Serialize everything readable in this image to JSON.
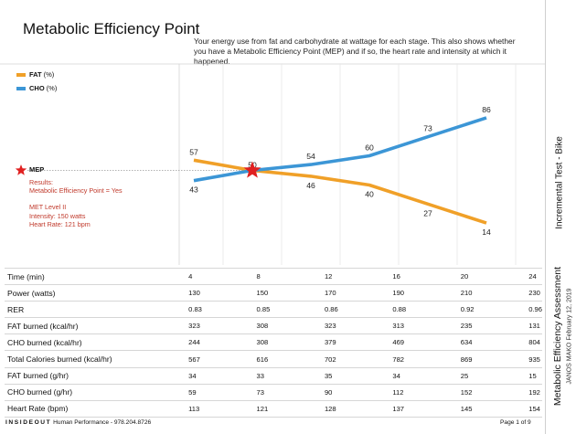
{
  "header": {
    "title": "Metabolic Efficiency Point",
    "description": "Your energy use from fat and carbohydrate at wattage for each stage. This also shows whether you have a Metabolic Efficiency Point (MEP) and if so, the heart rate and intensity at which it happened."
  },
  "legend": [
    {
      "name": "FAT",
      "unit": "(%)",
      "color": "#f0a028"
    },
    {
      "name": "CHO",
      "unit": "(%)",
      "color": "#3c96d6"
    }
  ],
  "mep": {
    "label": "MEP",
    "results_label": "Results:",
    "results_value": "Metabolic Efficiency Point = Yes",
    "met_level": "MET Level II",
    "intensity": "Intensity: 150 watts",
    "heart_rate": "Heart Rate: 121 bpm",
    "marker_color": "#e02020",
    "text_color": "#c0392b"
  },
  "side": {
    "test_type": "Incremental Test - Bike",
    "report_title": "Metabolic Efficiency Assessment",
    "subject": "JANOS MAKO",
    "date": "February 12, 2019"
  },
  "chart_data": {
    "type": "line",
    "x": [
      4,
      8,
      12,
      16,
      20,
      24
    ],
    "series": [
      {
        "name": "FAT (%)",
        "color": "#f0a028",
        "values": [
          57,
          50,
          46,
          40,
          27,
          14
        ]
      },
      {
        "name": "CHO (%)",
        "color": "#3c96d6",
        "values": [
          43,
          50,
          54,
          60,
          73,
          86
        ]
      }
    ],
    "mep_x": 8,
    "mep_y": 50,
    "xlabel": "",
    "ylabel": "",
    "grid": "vertical"
  },
  "table": {
    "rows": [
      {
        "label": "Time (min)",
        "values": [
          "4",
          "8",
          "12",
          "16",
          "20",
          "24"
        ]
      },
      {
        "label": "Power (watts)",
        "values": [
          "130",
          "150",
          "170",
          "190",
          "210",
          "230"
        ]
      },
      {
        "label": "RER",
        "values": [
          "0.83",
          "0.85",
          "0.86",
          "0.88",
          "0.92",
          "0.96"
        ]
      },
      {
        "label": "FAT burned (kcal/hr)",
        "values": [
          "323",
          "308",
          "323",
          "313",
          "235",
          "131"
        ]
      },
      {
        "label": "CHO burned (kcal/hr)",
        "values": [
          "244",
          "308",
          "379",
          "469",
          "634",
          "804"
        ]
      },
      {
        "label": "Total Calories burned (kcal/hr)",
        "values": [
          "567",
          "616",
          "702",
          "782",
          "869",
          "935"
        ]
      },
      {
        "label": "FAT burned (g/hr)",
        "values": [
          "34",
          "33",
          "35",
          "34",
          "25",
          "15"
        ]
      },
      {
        "label": "CHO burned (g/hr)",
        "values": [
          "59",
          "73",
          "90",
          "112",
          "152",
          "192"
        ]
      },
      {
        "label": "Heart Rate (bpm)",
        "values": [
          "113",
          "121",
          "128",
          "137",
          "145",
          "154"
        ]
      }
    ]
  },
  "footer": {
    "brand": "INSIDEOUT",
    "text": "Human Performance - 978.204.8726",
    "page": "Page 1 of 9"
  }
}
